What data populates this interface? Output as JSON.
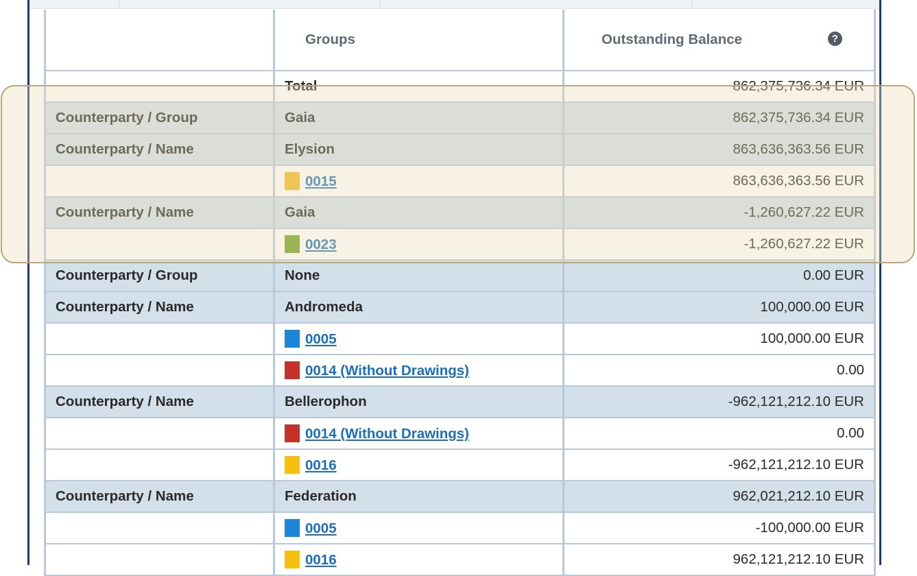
{
  "header": {
    "col_level": "",
    "col_groups": "Groups",
    "col_balance": "Outstanding Balance",
    "help_glyph": "?"
  },
  "rows": {
    "total": {
      "level": "",
      "group": "Total",
      "amount": "862,375,736.34 EUR"
    },
    "r1": {
      "level": "Counterparty / Group",
      "group": "Gaia",
      "amount": "862,375,736.34 EUR"
    },
    "r2": {
      "level": "Counterparty / Name",
      "group": "Elysion",
      "amount": "863,636,363.56 EUR"
    },
    "r3": {
      "account": "0015",
      "swatch": "#f2b81c",
      "amount": "863,636,363.56 EUR"
    },
    "r4": {
      "level": "Counterparty / Name",
      "group": "Gaia",
      "amount": "-1,260,627.22 EUR"
    },
    "r5": {
      "account": "0023",
      "swatch": "#6f9e1f",
      "amount": "-1,260,627.22 EUR"
    },
    "r6": {
      "level": "Counterparty / Group",
      "group": "None",
      "amount": "0.00 EUR"
    },
    "r7": {
      "level": "Counterparty / Name",
      "group": "Andromeda",
      "amount": "100,000.00 EUR"
    },
    "r8": {
      "account": "0005",
      "swatch": "#1c86d9",
      "amount": "100,000.00 EUR"
    },
    "r9": {
      "account": "0014 (Without Drawings)",
      "swatch": "#c4322a",
      "amount": "0.00"
    },
    "r10": {
      "level": "Counterparty / Name",
      "group": "Bellerophon",
      "amount": "-962,121,212.10 EUR"
    },
    "r11": {
      "account": "0014 (Without Drawings)",
      "swatch": "#c4322a",
      "amount": "0.00"
    },
    "r12": {
      "account": "0016",
      "swatch": "#f7bf0e",
      "amount": "-962,121,212.10 EUR"
    },
    "r13": {
      "level": "Counterparty / Name",
      "group": "Federation",
      "amount": "962,021,212.10 EUR"
    },
    "r14": {
      "account": "0005",
      "swatch": "#1c86d9",
      "amount": "-100,000.00 EUR"
    },
    "r15": {
      "account": "0016",
      "swatch": "#f7bf0e",
      "amount": "962,121,212.10 EUR"
    }
  },
  "colors": {
    "frame": "#1f3a6b",
    "row_shaded": "#d3e0ea",
    "link": "#1a6fb8",
    "highlight_border": "#b8a77a"
  }
}
